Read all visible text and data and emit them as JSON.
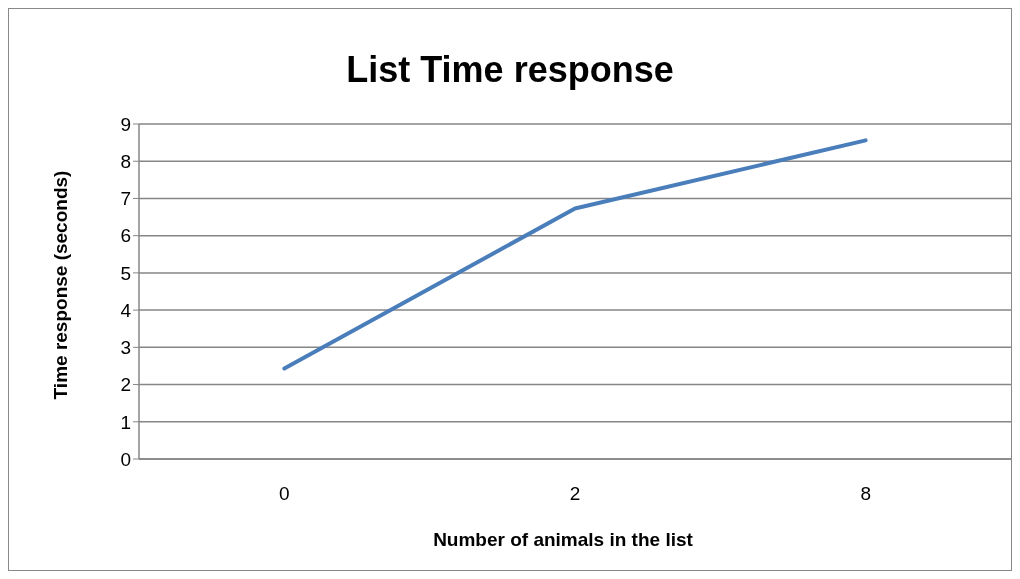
{
  "chart_data": {
    "type": "line",
    "title": "List Time response",
    "xlabel": "Number of animals in the list",
    "ylabel": "Time response (seconds)",
    "categories": [
      "0",
      "2",
      "8"
    ],
    "series": [
      {
        "color": "#4a7ebb",
        "values": [
          2.43,
          6.73,
          8.56
        ]
      }
    ],
    "ylim": [
      0,
      9
    ],
    "yticks": [
      0,
      1,
      2,
      3,
      4,
      5,
      6,
      7,
      8,
      9
    ],
    "grid": "y",
    "marker": "none"
  }
}
